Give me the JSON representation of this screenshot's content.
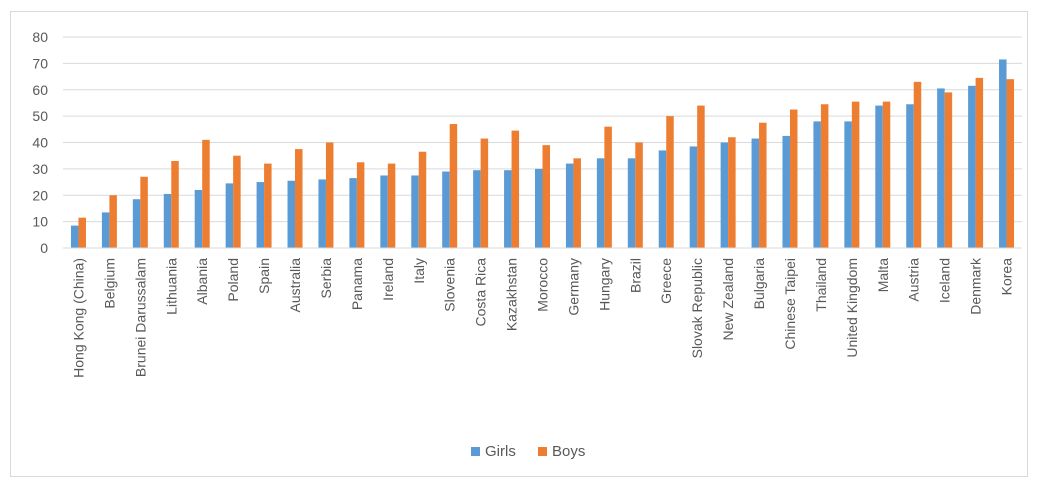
{
  "chart_data": {
    "type": "bar",
    "categories": [
      "Hong Kong (China)",
      "Belgium",
      "Brunei Darussalam",
      "Lithuania",
      "Albania",
      "Poland",
      "Spain",
      "Australia",
      "Serbia",
      "Panama",
      "Ireland",
      "Italy",
      "Slovenia",
      "Costa Rica",
      "Kazakhstan",
      "Morocco",
      "Germany",
      "Hungary",
      "Brazil",
      "Greece",
      "Slovak Republic",
      "New Zealand",
      "Bulgaria",
      "Chinese Taipei",
      "Thailand",
      "United Kingdom",
      "Malta",
      "Austria",
      "Iceland",
      "Denmark",
      "Korea"
    ],
    "series": [
      {
        "name": "Girls",
        "color": "#5b9bd5",
        "values": [
          8.5,
          13.5,
          18.5,
          20.5,
          22,
          24.5,
          25,
          25.5,
          26,
          26.5,
          27.5,
          27.5,
          29,
          29.5,
          29.5,
          30,
          32,
          34,
          34,
          37,
          38.5,
          40,
          41.5,
          42.5,
          48,
          48,
          54,
          54.5,
          60.5,
          61.5,
          71.5
        ]
      },
      {
        "name": "Boys",
        "color": "#ed7d31",
        "values": [
          11.5,
          20,
          27,
          33,
          41,
          35,
          32,
          37.5,
          40,
          32.5,
          32,
          36.5,
          47,
          41.5,
          44.5,
          39,
          34,
          46,
          40,
          50,
          54,
          42,
          47.5,
          52.5,
          54.5,
          55.5,
          55.5,
          63,
          59,
          64.5,
          64
        ]
      }
    ],
    "title": "",
    "xlabel": "",
    "ylabel": "",
    "ylim": [
      0,
      80
    ],
    "yticks": [
      0,
      10,
      20,
      30,
      40,
      50,
      60,
      70,
      80
    ],
    "grid": true,
    "legend": "bottom-center"
  }
}
